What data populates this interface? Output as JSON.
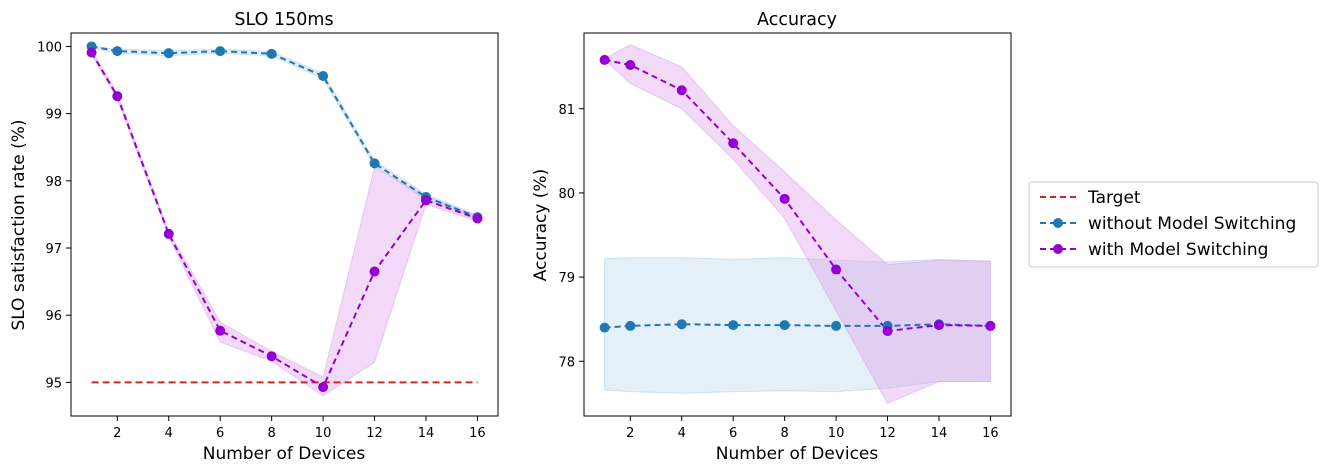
{
  "colors": {
    "target": "#d62728",
    "without": "#1f77b4",
    "with": "#9400d3",
    "with_band": "#dda0ea",
    "without_band": "#a9cbe6"
  },
  "legend": {
    "target": "Target",
    "without": "without Model Switching",
    "with": "with Model Switching"
  },
  "chart_data": [
    {
      "type": "line",
      "title": "SLO 150ms",
      "xlabel": "Number of Devices",
      "ylabel": "SLO satisfaction rate (%)",
      "xlim": [
        0.2,
        16.8
      ],
      "ylim": [
        94.5,
        100.2
      ],
      "xticks": [
        2,
        4,
        6,
        8,
        10,
        12,
        14,
        16
      ],
      "yticks": [
        95,
        96,
        97,
        98,
        99,
        100
      ],
      "x": [
        1,
        2,
        4,
        6,
        8,
        10,
        12,
        14,
        16
      ],
      "target": {
        "name": "Target",
        "value": 95,
        "x_range": [
          1,
          16
        ]
      },
      "series": [
        {
          "name": "without Model Switching",
          "values": [
            100.0,
            99.93,
            99.9,
            99.93,
            99.89,
            99.56,
            98.26,
            97.76,
            97.46
          ],
          "lower": [
            99.98,
            99.9,
            99.86,
            99.9,
            99.86,
            99.52,
            98.22,
            97.72,
            97.43
          ],
          "upper": [
            100.0,
            99.96,
            99.94,
            99.96,
            99.92,
            99.6,
            98.3,
            97.8,
            97.49
          ]
        },
        {
          "name": "with Model Switching",
          "values": [
            99.91,
            99.26,
            97.21,
            95.77,
            95.39,
            94.93,
            96.65,
            97.71,
            97.44
          ],
          "lower": [
            99.88,
            99.22,
            97.17,
            95.6,
            95.32,
            94.8,
            95.3,
            97.65,
            97.4
          ],
          "upper": [
            99.94,
            99.3,
            97.25,
            95.9,
            95.46,
            95.08,
            98.2,
            97.77,
            97.48
          ]
        }
      ]
    },
    {
      "type": "line",
      "title": "Accuracy",
      "xlabel": "Number of Devices",
      "ylabel": "Accuracy (%)",
      "xlim": [
        0.2,
        16.8
      ],
      "ylim": [
        77.35,
        81.9
      ],
      "xticks": [
        2,
        4,
        6,
        8,
        10,
        12,
        14,
        16
      ],
      "yticks": [
        78,
        79,
        80,
        81
      ],
      "x": [
        1,
        2,
        4,
        6,
        8,
        10,
        12,
        14,
        16
      ],
      "series": [
        {
          "name": "without Model Switching",
          "values": [
            78.4,
            78.42,
            78.44,
            78.43,
            78.43,
            78.42,
            78.42,
            78.44,
            78.42
          ],
          "lower": [
            77.66,
            77.64,
            77.62,
            77.64,
            77.65,
            77.64,
            77.68,
            77.76,
            77.76
          ],
          "upper": [
            79.22,
            79.23,
            79.23,
            79.21,
            79.23,
            79.2,
            79.18,
            79.21,
            79.19
          ]
        },
        {
          "name": "with Model Switching",
          "values": [
            81.58,
            81.52,
            81.22,
            80.59,
            79.93,
            79.09,
            78.36,
            78.43,
            78.42
          ],
          "lower": [
            81.58,
            81.3,
            81.0,
            80.4,
            79.7,
            78.6,
            77.5,
            77.76,
            77.76
          ],
          "upper": [
            81.6,
            81.76,
            81.5,
            80.8,
            80.25,
            79.68,
            79.15,
            79.2,
            79.19
          ]
        }
      ]
    }
  ]
}
